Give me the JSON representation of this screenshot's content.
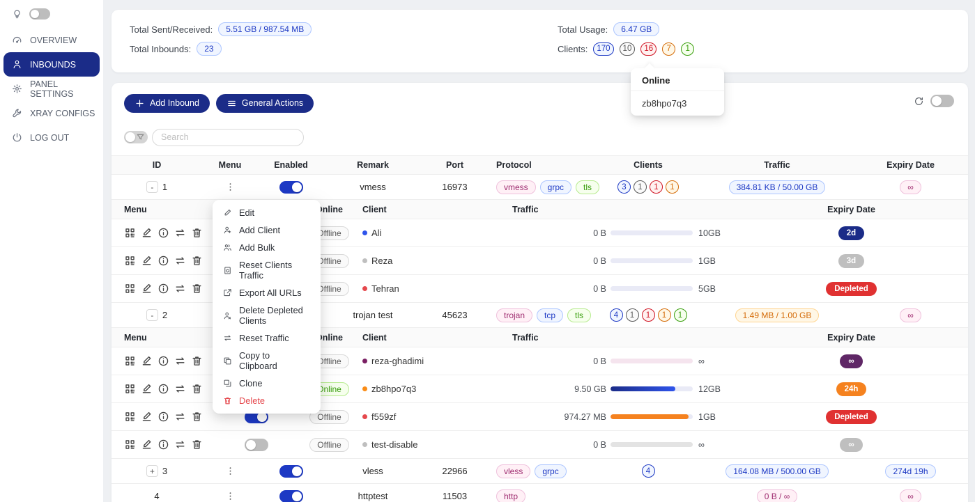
{
  "colors": {
    "primary": "#1b2c88",
    "toggle_on": "#1d39c4",
    "danger": "#e5484d",
    "online": "#389e0d"
  },
  "sidebar": {
    "theme_toggle": {
      "icon": "bulb",
      "state": "off"
    },
    "items": [
      {
        "label": "OVERVIEW",
        "icon": "gauge",
        "active": false
      },
      {
        "label": "INBOUNDS",
        "icon": "person",
        "active": true
      },
      {
        "label": "PANEL SETTINGS",
        "icon": "gear",
        "active": false
      },
      {
        "label": "XRAY CONFIGS",
        "icon": "wrench",
        "active": false
      },
      {
        "label": "LOG OUT",
        "icon": "logout",
        "active": false
      }
    ]
  },
  "stats": {
    "sent_received": {
      "label": "Total Sent/Received:",
      "value": "5.51 GB / 987.54 MB",
      "color": "blue"
    },
    "total_inbounds": {
      "label": "Total Inbounds:",
      "value": "23",
      "color": "blue"
    },
    "total_usage": {
      "label": "Total Usage:",
      "value": "6.47 GB",
      "color": "blue"
    },
    "clients": {
      "label": "Clients:",
      "badges": [
        {
          "value": "170",
          "color": "blue"
        },
        {
          "value": "10",
          "color": "gray"
        },
        {
          "value": "16",
          "color": "red"
        },
        {
          "value": "7",
          "color": "orange"
        },
        {
          "value": "1",
          "color": "green"
        }
      ]
    }
  },
  "online_popover": {
    "title": "Online",
    "clients": [
      "zb8hpo7q3"
    ]
  },
  "toolbar": {
    "add_inbound": "Add Inbound",
    "general_actions": "General Actions"
  },
  "search": {
    "placeholder": "Search"
  },
  "table": {
    "headers": [
      "ID",
      "Menu",
      "Enabled",
      "Remark",
      "Port",
      "Protocol",
      "Clients",
      "Traffic",
      "Expiry Date"
    ],
    "sub_headers": [
      "Menu",
      "Enabled",
      "Online",
      "Client",
      "Traffic",
      "Expiry Date"
    ],
    "client_menu_icons": [
      "qrcode",
      "pencil-line",
      "info",
      "swap",
      "trash"
    ]
  },
  "context_menu": {
    "items": [
      {
        "icon": "pencil",
        "label": "Edit",
        "danger": false
      },
      {
        "icon": "user-add",
        "label": "Add Client",
        "danger": false
      },
      {
        "icon": "users-add",
        "label": "Add Bulk",
        "danger": false
      },
      {
        "icon": "file-sync",
        "label": "Reset Clients Traffic",
        "danger": false
      },
      {
        "icon": "export",
        "label": "Export All URLs",
        "danger": false
      },
      {
        "icon": "user-del",
        "label": "Delete Depleted Clients",
        "danger": false
      },
      {
        "icon": "swap",
        "label": "Reset Traffic",
        "danger": false
      },
      {
        "icon": "copy",
        "label": "Copy to Clipboard",
        "danger": false
      },
      {
        "icon": "clone",
        "label": "Clone",
        "danger": false
      },
      {
        "icon": "trash",
        "label": "Delete",
        "danger": true
      }
    ]
  },
  "inbounds": [
    {
      "id": "1",
      "expander": "-",
      "enabled": true,
      "remark": "vmess",
      "port": "16973",
      "protocols": [
        {
          "label": "vmess",
          "color": "magenta"
        },
        {
          "label": "grpc",
          "color": "blue"
        },
        {
          "label": "tls",
          "color": "green"
        }
      ],
      "client_badges": [
        {
          "value": "3",
          "color": "blue"
        },
        {
          "value": "1",
          "color": "gray"
        },
        {
          "value": "1",
          "color": "red"
        },
        {
          "value": "1",
          "color": "orange"
        }
      ],
      "traffic": {
        "value": "384.81 KB / 50.00 GB",
        "color": "blue"
      },
      "expiry": {
        "value": "∞",
        "type": "pill",
        "color": "magenta"
      },
      "clients": [
        {
          "name": "Ali",
          "dot": "#2f54eb",
          "enabled": true,
          "online": "Offline",
          "used": "0 B",
          "limit": "10GB",
          "percent": 0,
          "bar": "lavender",
          "expiry": {
            "value": "2d",
            "type": "solid",
            "color": "navy"
          }
        },
        {
          "name": "Reza",
          "dot": "#bfbfbf",
          "enabled": true,
          "online": "Offline",
          "used": "0 B",
          "limit": "1GB",
          "percent": 0,
          "bar": "lavender",
          "expiry": {
            "value": "3d",
            "type": "solid",
            "color": "gray"
          }
        },
        {
          "name": "Tehran",
          "dot": "#e5484d",
          "enabled": true,
          "online": "Offline",
          "used": "0 B",
          "limit": "5GB",
          "percent": 0,
          "bar": "lavender",
          "expiry": {
            "value": "Depleted",
            "type": "solid",
            "color": "red"
          }
        }
      ]
    },
    {
      "id": "2",
      "expander": "-",
      "enabled": true,
      "remark": "trojan test",
      "port": "45623",
      "protocols": [
        {
          "label": "trojan",
          "color": "magenta"
        },
        {
          "label": "tcp",
          "color": "blue"
        },
        {
          "label": "tls",
          "color": "green"
        }
      ],
      "client_badges": [
        {
          "value": "4",
          "color": "blue"
        },
        {
          "value": "1",
          "color": "gray"
        },
        {
          "value": "1",
          "color": "red"
        },
        {
          "value": "1",
          "color": "orange"
        },
        {
          "value": "1",
          "color": "green"
        }
      ],
      "traffic": {
        "value": "1.49 MB / 1.00 GB",
        "color": "orange"
      },
      "expiry": {
        "value": "∞",
        "type": "pill",
        "color": "magenta"
      },
      "clients": [
        {
          "name": "reza-ghadimi",
          "dot": "#7a1f63",
          "enabled": true,
          "online": "Offline",
          "used": "0 B",
          "limit": "∞",
          "percent": 0,
          "bar": "pink",
          "expiry": {
            "value": "∞",
            "type": "solid",
            "color": "purple"
          }
        },
        {
          "name": "zb8hpo7q3",
          "dot": "#fa8c16",
          "enabled": true,
          "online": "Online",
          "used": "9.50 GB",
          "limit": "12GB",
          "percent": 79,
          "bar": "blue",
          "expiry": {
            "value": "24h",
            "type": "solid",
            "color": "orange"
          }
        },
        {
          "name": "f559zf",
          "dot": "#e5484d",
          "enabled": true,
          "online": "Offline",
          "used": "974.27 MB",
          "limit": "1GB",
          "percent": 95,
          "bar": "orange",
          "expiry": {
            "value": "Depleted",
            "type": "solid",
            "color": "red"
          }
        },
        {
          "name": "test-disable",
          "dot": "#bfbfbf",
          "enabled": false,
          "online": "Offline",
          "used": "0 B",
          "limit": "∞",
          "percent": 0,
          "bar": "gray",
          "expiry": {
            "value": "∞",
            "type": "solid",
            "color": "gray"
          }
        }
      ]
    },
    {
      "id": "3",
      "expander": "+",
      "enabled": true,
      "remark": "vless",
      "port": "22966",
      "protocols": [
        {
          "label": "vless",
          "color": "magenta"
        },
        {
          "label": "grpc",
          "color": "blue"
        }
      ],
      "client_badges": [
        {
          "value": "4",
          "color": "blue"
        }
      ],
      "traffic": {
        "value": "164.08 MB / 500.00 GB",
        "color": "blue"
      },
      "expiry": {
        "value": "274d 19h",
        "type": "pill",
        "color": "blue"
      },
      "clients": []
    },
    {
      "id": "4",
      "expander": null,
      "enabled": true,
      "remark": "httptest",
      "port": "11503",
      "protocols": [
        {
          "label": "http",
          "color": "magenta"
        }
      ],
      "client_badges": [],
      "traffic": {
        "value": "0 B / ∞",
        "color": "magenta"
      },
      "expiry": {
        "value": "∞",
        "type": "pill",
        "color": "magenta"
      },
      "clients": []
    }
  ]
}
